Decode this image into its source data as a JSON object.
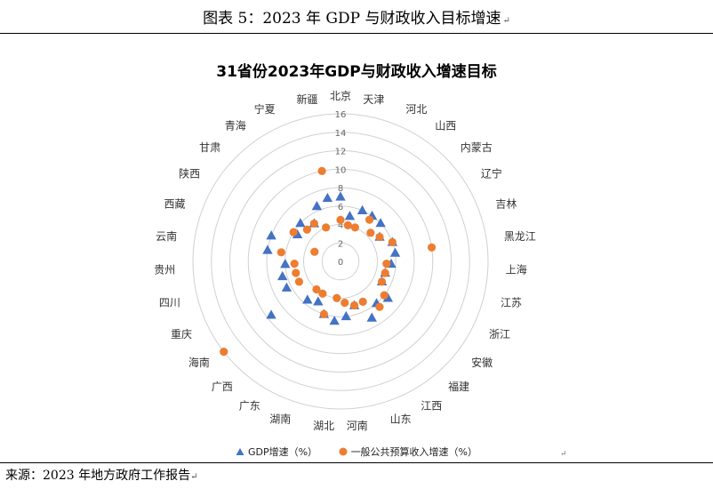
{
  "figure_title": "图表 5：2023 年 GDP 与财政收入目标增速",
  "paragraph_mark": "↵",
  "source": "来源：2023 年地方政府工作报告",
  "chart_data": {
    "type": "radar",
    "title": "31省份2023年GDP与财政收入增速目标",
    "radial_ticks": [
      "0",
      "2",
      "4",
      "6",
      "8",
      "10",
      "12",
      "14",
      "16"
    ],
    "rmax": 16,
    "categories": [
      "北京",
      "天津",
      "河北",
      "山西",
      "内蒙古",
      "辽宁",
      "吉林",
      "黑龙江",
      "上海",
      "江苏",
      "浙江",
      "安徽",
      "福建",
      "江西",
      "山东",
      "河南",
      "湖北",
      "湖南",
      "广东",
      "广西",
      "海南",
      "重庆",
      "四川",
      "贵州",
      "云南",
      "西藏",
      "陕西",
      "甘肃",
      "青海",
      "宁夏",
      "新疆"
    ],
    "series": [
      {
        "name": "GDP增速（%）",
        "marker": "triangle",
        "color": "#4472C4",
        "values": [
          7,
          5,
          6,
          6,
          6,
          5,
          6,
          6,
          5.5,
          5,
          5,
          6.5,
          6,
          7,
          5,
          6,
          6.5,
          6,
          5,
          5.5,
          9.5,
          6.5,
          6.5,
          6,
          8,
          8,
          5.5,
          6,
          5,
          6.5,
          7
        ]
      },
      {
        "name": "一般公共预算收入增速（%）",
        "marker": "circle",
        "color": "#ED7D31",
        "values": [
          4.5,
          4,
          4,
          5.5,
          4.5,
          5,
          6,
          10,
          5,
          5,
          5,
          6,
          6.5,
          5,
          5,
          4.5,
          4,
          6,
          4,
          4,
          16,
          5,
          5,
          5,
          6.5,
          3,
          6,
          5,
          5,
          4,
          10
        ]
      }
    ]
  }
}
